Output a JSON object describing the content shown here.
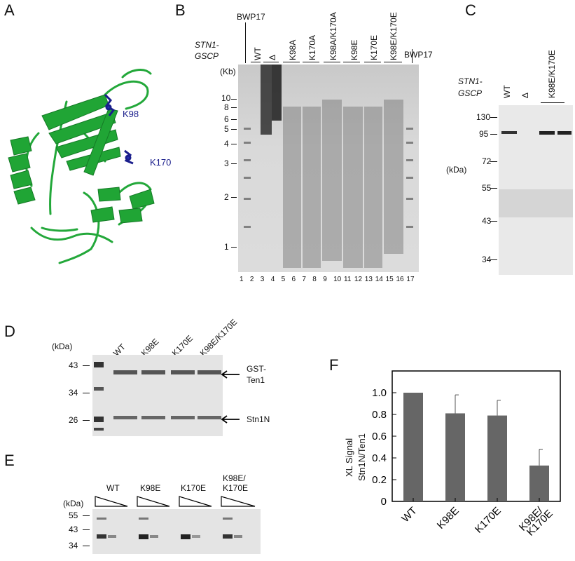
{
  "panels": {
    "A": {
      "letter": "A",
      "residues": [
        "K98",
        "K170"
      ]
    },
    "B": {
      "letter": "B",
      "construct_label": [
        "STN1-",
        "GSCP"
      ],
      "lane_headers": [
        "BWP17",
        "WT",
        "Δ",
        "K98A",
        "K170A",
        "K98A/K170A",
        "K98E",
        "K170E",
        "K98E/K170E",
        "BWP17"
      ],
      "unit": "(Kb)",
      "size_markers": [
        "10",
        "8",
        "6",
        "5",
        "4",
        "3",
        "2",
        "1"
      ],
      "lane_numbers": [
        "1",
        "2",
        "3",
        "4",
        "5",
        "6",
        "7",
        "8",
        "9",
        "10",
        "11",
        "12",
        "13",
        "14",
        "15",
        "16",
        "17"
      ]
    },
    "C": {
      "letter": "C",
      "construct_label": [
        "STN1-",
        "GSCP"
      ],
      "lane_headers": [
        "WT",
        "Δ",
        "K98E/K170E"
      ],
      "unit": "(kDa)",
      "size_markers": [
        "130",
        "95",
        "72",
        "55",
        "43",
        "34"
      ]
    },
    "D": {
      "letter": "D",
      "unit": "(kDa)",
      "lane_headers": [
        "WT",
        "K98E",
        "K170E",
        "K98E/K170E"
      ],
      "size_markers": [
        "43",
        "34",
        "26"
      ],
      "band_labels": {
        "top": [
          "GST-",
          "Ten1"
        ],
        "bottom": "Stn1N"
      }
    },
    "E": {
      "letter": "E",
      "unit": "(kDa)",
      "groups": [
        "WT",
        "K98E",
        "K170E",
        "K98E/",
        "K170E"
      ],
      "size_markers": [
        "55",
        "43",
        "34"
      ]
    },
    "F": {
      "letter": "F",
      "ylabel_lines": [
        "XL Signal",
        "Stn1N/Ten1"
      ]
    }
  },
  "chart_data": {
    "type": "bar",
    "categories": [
      "WT",
      "K98E",
      "K170E",
      "K98E/\nK170E"
    ],
    "category_lines": [
      [
        "WT"
      ],
      [
        "K98E"
      ],
      [
        "K170E"
      ],
      [
        "K98E/",
        "K170E"
      ]
    ],
    "values": [
      1.0,
      0.81,
      0.79,
      0.33
    ],
    "errors": [
      0.0,
      0.17,
      0.14,
      0.15
    ],
    "ylabel": "XL Signal Stn1N/Ten1",
    "xlabel": "",
    "ylim": [
      0,
      1.2
    ],
    "yticks": [
      "0",
      "0.2",
      "0.4",
      "0.6",
      "0.8",
      "1.0"
    ],
    "yticks_values": [
      0,
      0.2,
      0.4,
      0.6,
      0.8,
      1.0
    ],
    "bar_color": "#666666",
    "grid": false
  }
}
